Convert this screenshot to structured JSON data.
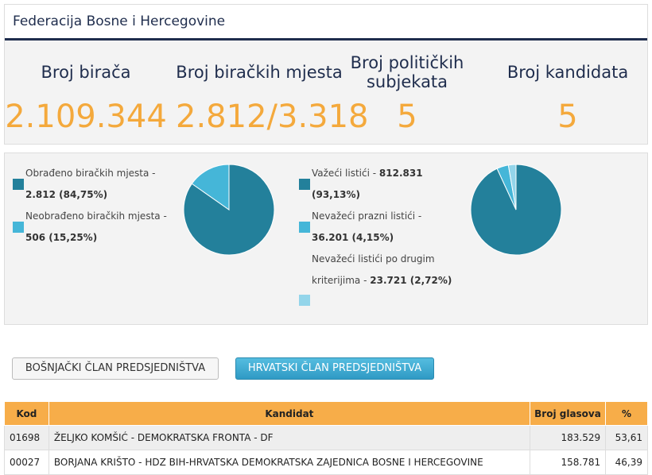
{
  "header": {
    "title": "Federacija Bosne i Hercegovine"
  },
  "stats": [
    {
      "label": "Broj birača",
      "value": "2.109.344"
    },
    {
      "label": "Broj biračkih mjesta",
      "value": "2.812/3.318"
    },
    {
      "label": "Broj političkih subjekata",
      "value": "5"
    },
    {
      "label": "Broj kandidata",
      "value": "5"
    }
  ],
  "pies": [
    {
      "values": [
        84.75,
        15.25
      ],
      "colors": [
        "#23809b",
        "#45b6d8"
      ],
      "legend": [
        {
          "label": "Obrađeno biračkih mjesta -",
          "value": "2.812 (84,75%)"
        },
        {
          "label": "Neobrađeno biračkih mjesta -",
          "value": "506 (15,25%)"
        }
      ]
    },
    {
      "values": [
        93.13,
        4.15,
        2.72
      ],
      "colors": [
        "#23809b",
        "#45b6d8",
        "#93d5ea"
      ],
      "legend": [
        {
          "label": "Važeći listići -",
          "value": "812.831 (93,13%)"
        },
        {
          "label": "Nevažeći prazni listići -",
          "value": "36.201 (4,15%)"
        },
        {
          "label": "Nevažeći listići po drugim kriterijima -",
          "value": "23.721 (2,72%)"
        }
      ]
    }
  ],
  "tabs": [
    "BOŠNJAČKI ČLAN PREDSJEDNIŠTVA",
    "HRVATSKI ČLAN PREDSJEDNIŠTVA"
  ],
  "table": {
    "columns": [
      "Kod",
      "Kandidat",
      "Broj glasova",
      "%"
    ],
    "rows": [
      [
        "01698",
        "ŽELJKO KOMŠIĆ - DEMOKRATSKA FRONTA - DF",
        "183.529",
        "53,61"
      ],
      [
        "00027",
        "BORJANA KRIŠTO - HDZ BIH-HRVATSKA DEMOKRATSKA ZAJEDNICA BOSNE I HERCEGOVINE",
        "158.781",
        "46,39"
      ]
    ]
  }
}
